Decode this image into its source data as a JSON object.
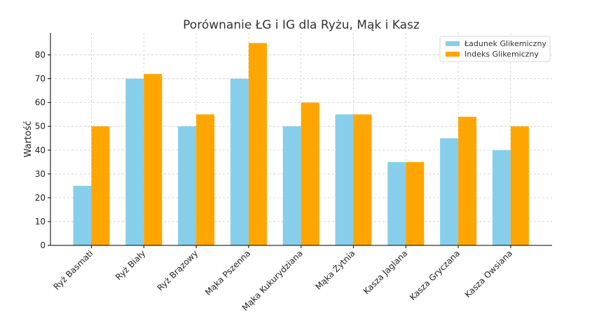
{
  "chart_data": {
    "type": "bar",
    "title": "Porównanie ŁG i IG dla Ryżu, Mąk i Kasz",
    "xlabel": "",
    "ylabel": "Wartość",
    "categories": [
      "Ryż Basmati",
      "Ryż Biały",
      "Ryż Brązowy",
      "Mąka Pszenna",
      "Mąka Kukurydziana",
      "Mąka Żytnia",
      "Kasza Jaglana",
      "Kasza Gryczana",
      "Kasza Owsiana"
    ],
    "series": [
      {
        "name": "Ładunek Glikemiczny",
        "color": "#87ceeb",
        "values": [
          25,
          70,
          50,
          70,
          50,
          55,
          35,
          45,
          40
        ]
      },
      {
        "name": "Indeks Glikemiczny",
        "color": "#ffa500",
        "values": [
          50,
          72,
          55,
          85,
          60,
          55,
          35,
          54,
          50
        ]
      }
    ],
    "yticks": [
      0,
      10,
      20,
      30,
      40,
      50,
      60,
      70,
      80
    ],
    "ylim": [
      0,
      89.25
    ],
    "grid": true,
    "legend_position": "top-right"
  }
}
